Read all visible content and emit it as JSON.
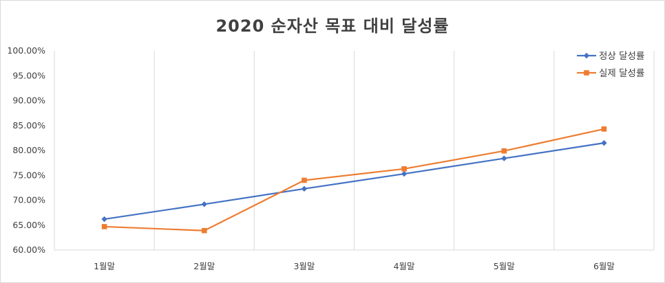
{
  "chart_data": {
    "type": "line",
    "title": "2020 순자산 목표 대비 달성률",
    "categories": [
      "1월말",
      "2월말",
      "3월말",
      "4월말",
      "5월말",
      "6월말"
    ],
    "yticks": [
      "100.00%",
      "95.00%",
      "90.00%",
      "85.00%",
      "80.00%",
      "75.00%",
      "70.00%",
      "65.00%",
      "60.00%"
    ],
    "ylim": [
      60,
      100
    ],
    "grid": "vertical",
    "legend_position": "top-right",
    "series": [
      {
        "name": "정상 달성률",
        "color": "#4472c4",
        "marker": "diamond",
        "values": [
          66.2,
          69.2,
          72.3,
          75.3,
          78.4,
          81.5
        ]
      },
      {
        "name": "실제 달성률",
        "color": "#ed7d31",
        "marker": "square",
        "values": [
          64.7,
          63.9,
          74.0,
          76.3,
          79.9,
          84.3
        ]
      }
    ]
  }
}
